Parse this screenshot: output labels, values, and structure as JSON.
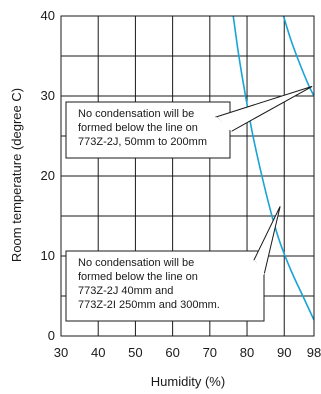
{
  "chart_data": {
    "type": "line",
    "xlabel": "Humidity (%)",
    "ylabel": "Room temperature (degree C)",
    "xlim": [
      30,
      98
    ],
    "ylim": [
      0,
      40
    ],
    "x_ticks": [
      30,
      40,
      50,
      60,
      70,
      80,
      90,
      98
    ],
    "x_tick_labels": [
      "30",
      "40",
      "50",
      "60",
      "70",
      "80",
      "90",
      "98"
    ],
    "y_ticks": [
      0,
      10,
      20,
      30,
      40
    ],
    "y_tick_labels": [
      "0",
      "10",
      "20",
      "30",
      "40"
    ],
    "x_gridlines": [
      30,
      40,
      50,
      60,
      70,
      80,
      90,
      98
    ],
    "y_gridlines": [
      0,
      5,
      10,
      15,
      20,
      25,
      30,
      35,
      40
    ],
    "grid": true,
    "series": [
      {
        "color": "#19a3d6",
        "x": [
          76.3,
          77.8,
          79.6,
          81.6,
          84.0,
          86.7,
          89.0,
          92.0,
          95.0,
          98.0
        ],
        "y": [
          40,
          35,
          30,
          25,
          20,
          15,
          11.5,
          8,
          5,
          2
        ]
      },
      {
        "color": "#19a3d6",
        "x": [
          89.8,
          91.8,
          94.2,
          96.6,
          98.0
        ],
        "y": [
          40,
          37,
          34,
          31.3,
          30
        ]
      }
    ],
    "annotations": [
      {
        "lines": [
          "No condensation will be",
          "formed below the line on",
          "773Z-2J, 50mm to 200mm"
        ],
        "pointer_to": [
          97.5,
          31.2
        ]
      },
      {
        "lines": [
          "No condensation will be",
          "formed below the line on",
          "773Z-2J 40mm and",
          "773Z-2I  250mm and 300mm."
        ],
        "pointer_to": [
          88.9,
          16.2
        ]
      }
    ]
  }
}
